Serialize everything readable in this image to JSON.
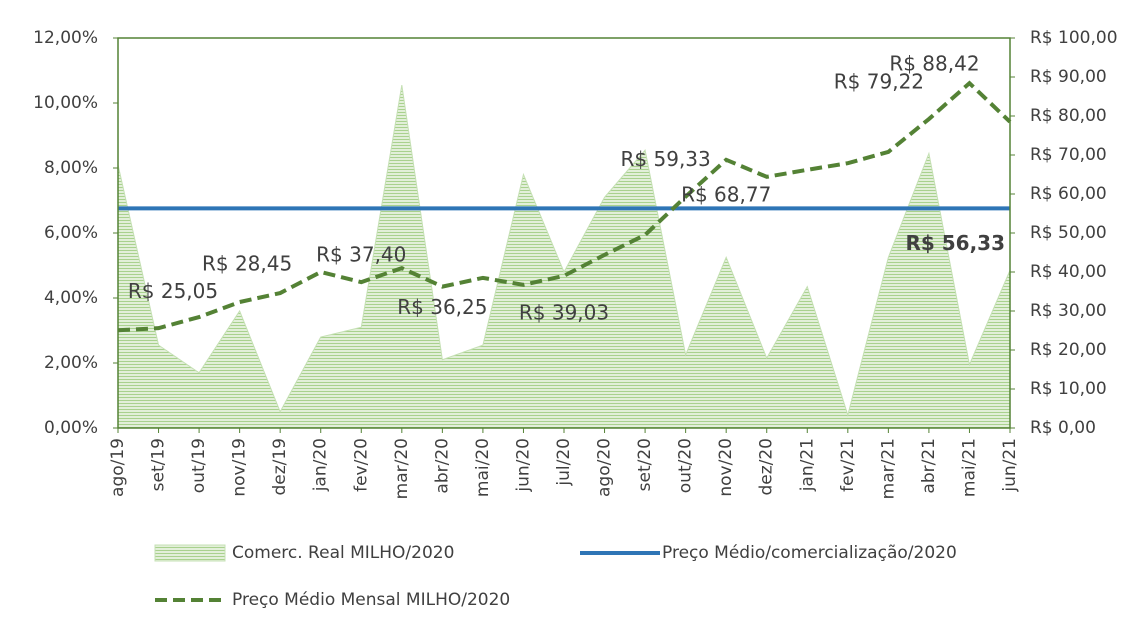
{
  "chart_data": {
    "type": "area",
    "categories": [
      "ago/19",
      "set/19",
      "out/19",
      "nov/19",
      "dez/19",
      "jan/20",
      "fev/20",
      "mar/20",
      "abr/20",
      "mai/20",
      "jun/20",
      "jul/20",
      "ago/20",
      "set/20",
      "out/20",
      "nov/20",
      "dez/20",
      "jan/21",
      "fev/21",
      "mar/21",
      "abr/21",
      "mai/21",
      "jun/21"
    ],
    "ylim": [
      0,
      12
    ],
    "yticks": [
      {
        "value": 0,
        "label": "0,00%"
      },
      {
        "value": 2,
        "label": "2,00%"
      },
      {
        "value": 4,
        "label": "4,00%"
      },
      {
        "value": 6,
        "label": "6,00%"
      },
      {
        "value": 8,
        "label": "8,00%"
      },
      {
        "value": 10,
        "label": "10,00%"
      },
      {
        "value": 12,
        "label": "12,00%"
      }
    ],
    "y2lim": [
      0,
      100
    ],
    "y2ticks": [
      {
        "value": 0,
        "label": "R$ 0,00"
      },
      {
        "value": 10,
        "label": "R$ 10,00"
      },
      {
        "value": 20,
        "label": "R$ 20,00"
      },
      {
        "value": 30,
        "label": "R$ 30,00"
      },
      {
        "value": 40,
        "label": "R$ 40,00"
      },
      {
        "value": 50,
        "label": "R$ 50,00"
      },
      {
        "value": 60,
        "label": "R$ 60,00"
      },
      {
        "value": 70,
        "label": "R$ 70,00"
      },
      {
        "value": 80,
        "label": "R$ 80,00"
      },
      {
        "value": 90,
        "label": "R$ 90,00"
      },
      {
        "value": 100,
        "label": "R$ 100,00"
      }
    ],
    "series": [
      {
        "name": "Comerc. Real MILHO/2020",
        "color": "#a9d18e",
        "type": "area",
        "values": [
          8.1,
          2.55,
          1.7,
          3.6,
          0.5,
          2.8,
          3.1,
          10.55,
          2.1,
          2.55,
          7.8,
          4.8,
          7.1,
          8.55,
          2.25,
          5.25,
          2.15,
          4.35,
          0.4,
          5.25,
          8.45,
          1.95,
          4.85
        ]
      },
      {
        "name": "Preço Médio/comercialização/2020",
        "color": "#2e75b6",
        "type": "hline",
        "axis": "y2",
        "value": 56.33,
        "value_label": "R$ 56,33"
      },
      {
        "name": "Preço Médio Mensal MILHO/2020",
        "color": "#548235",
        "type": "line",
        "axis": "y2",
        "values": [
          25.05,
          25.6,
          28.45,
          32.3,
          34.6,
          40,
          37.4,
          41,
          36.25,
          38.5,
          36.7,
          39.03,
          44.4,
          49.5,
          59.33,
          68.77,
          64.4,
          66.2,
          67.9,
          70.8,
          79.22,
          88.42,
          78.5
        ],
        "value_labels": [
          "R$ 25,05",
          null,
          "R$ 28,45",
          null,
          null,
          null,
          "R$ 37,40",
          null,
          "R$ 36,25",
          null,
          null,
          "R$ 39,03",
          null,
          null,
          "R$ 59,33",
          "R$ 68,77",
          null,
          null,
          null,
          null,
          "R$ 79,22",
          "R$ 88,42",
          null
        ]
      }
    ]
  }
}
